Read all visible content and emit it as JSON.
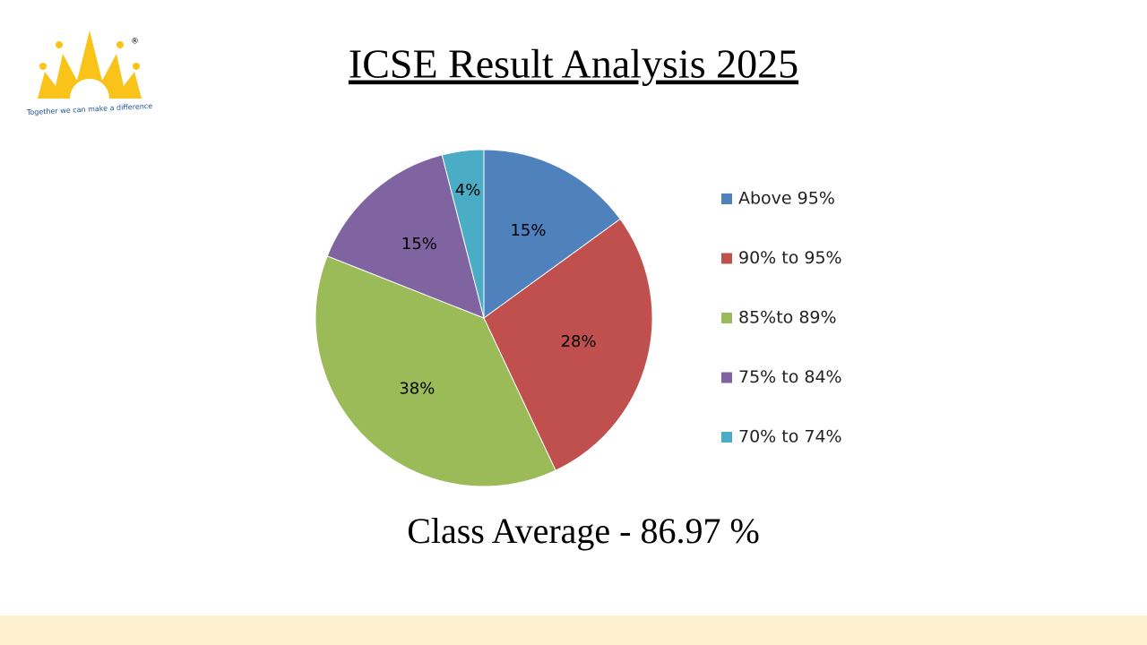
{
  "logo": {
    "mark": "®",
    "tagline": "Together we can make a difference"
  },
  "chart_data": {
    "type": "pie",
    "title": "ICSE Result Analysis 2025",
    "categories": [
      "Above 95%",
      "90% to 95%",
      "85%to 89%",
      "75% to 84%",
      "70% to 74%"
    ],
    "values": [
      15,
      28,
      38,
      15,
      4
    ],
    "value_labels": [
      "15%",
      "28%",
      "38%",
      "15%",
      "4%"
    ],
    "colors": [
      "#4f81bd",
      "#c0504d",
      "#9bbb59",
      "#8064a2",
      "#4bacc6"
    ],
    "legend": "right",
    "annotation": "Class Average - 86.97 %"
  }
}
